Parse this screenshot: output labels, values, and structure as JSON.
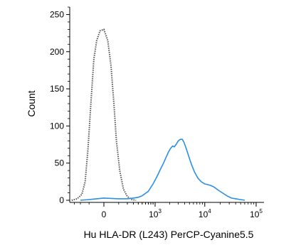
{
  "chart_data": {
    "type": "line",
    "title": "",
    "xlabel": "Hu HLA-DR (L243) PerCP-Cyanine5.5",
    "ylabel": "Count",
    "x_scale": "biexponential",
    "xlim": [
      -1000,
      100000
    ],
    "ylim": [
      0,
      260
    ],
    "y_ticks": [
      0,
      50,
      100,
      150,
      200,
      250
    ],
    "x_ticks": [
      {
        "value": 0,
        "base": "0",
        "exp": ""
      },
      {
        "value": 1000,
        "base": "10",
        "exp": "3"
      },
      {
        "value": 10000,
        "base": "10",
        "exp": "4"
      },
      {
        "value": 100000,
        "base": "10",
        "exp": "5"
      }
    ],
    "grid": false,
    "legend": "none",
    "series": [
      {
        "style": "dotted",
        "color": "#555555",
        "x": [
          -350,
          -250,
          -180,
          -140,
          -110,
          -80,
          -60,
          -40,
          -20,
          0,
          20,
          40,
          60,
          80,
          110,
          150,
          200,
          270,
          350
        ],
        "y": [
          0,
          2,
          8,
          25,
          70,
          140,
          190,
          215,
          228,
          230,
          215,
          180,
          130,
          80,
          40,
          15,
          5,
          1,
          0
        ]
      },
      {
        "style": "solid",
        "color": "#2a8fe8",
        "x": [
          -200,
          -100,
          0,
          100,
          200,
          300,
          400,
          500,
          700,
          900,
          1100,
          1300,
          1500,
          1700,
          1900,
          2100,
          2300,
          2500,
          2700,
          3000,
          3300,
          3600,
          3900,
          4300,
          4800,
          5500,
          6300,
          7300,
          8500,
          10000,
          11500,
          13000,
          15000,
          18000,
          22000,
          27000,
          33000,
          40000,
          50000,
          60000
        ],
        "y": [
          0,
          1,
          3,
          2,
          2,
          3,
          4,
          6,
          12,
          22,
          32,
          42,
          50,
          58,
          65,
          70,
          73,
          72,
          75,
          80,
          82,
          82,
          78,
          70,
          60,
          48,
          38,
          30,
          25,
          22,
          21,
          20,
          18,
          14,
          10,
          6,
          3,
          2,
          1,
          0
        ]
      }
    ]
  }
}
